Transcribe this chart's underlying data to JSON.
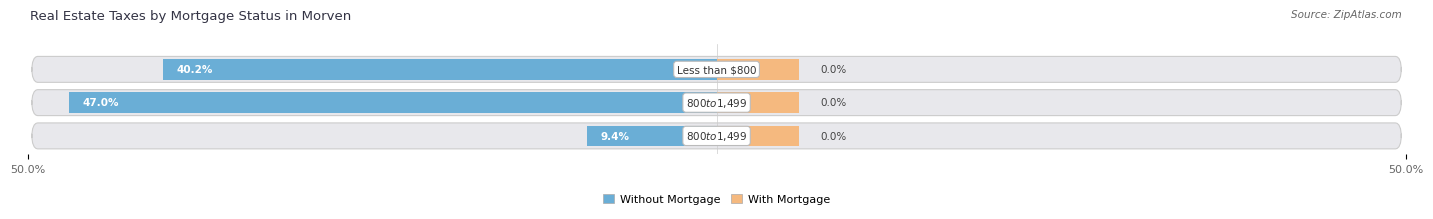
{
  "title": "Real Estate Taxes by Mortgage Status in Morven",
  "source": "Source: ZipAtlas.com",
  "rows": [
    {
      "label": "Less than $800",
      "without_mortgage": 40.2,
      "with_mortgage": 0.0
    },
    {
      "label": "$800 to $1,499",
      "without_mortgage": 47.0,
      "with_mortgage": 0.0
    },
    {
      "label": "$800 to $1,499",
      "without_mortgage": 9.4,
      "with_mortgage": 0.0
    }
  ],
  "x_min": -50.0,
  "x_max": 50.0,
  "color_without_mortgage": "#6aaed6",
  "color_with_mortgage": "#f5b97f",
  "color_bg_row": "#e8e8ec",
  "color_label_box": "#ffffff",
  "bar_height": 0.62,
  "title_fontsize": 9.5,
  "source_fontsize": 7.5,
  "value_fontsize": 7.5,
  "label_fontsize": 7.5,
  "legend_fontsize": 8,
  "tick_fontsize": 8,
  "wm_bar_width": 6.0
}
